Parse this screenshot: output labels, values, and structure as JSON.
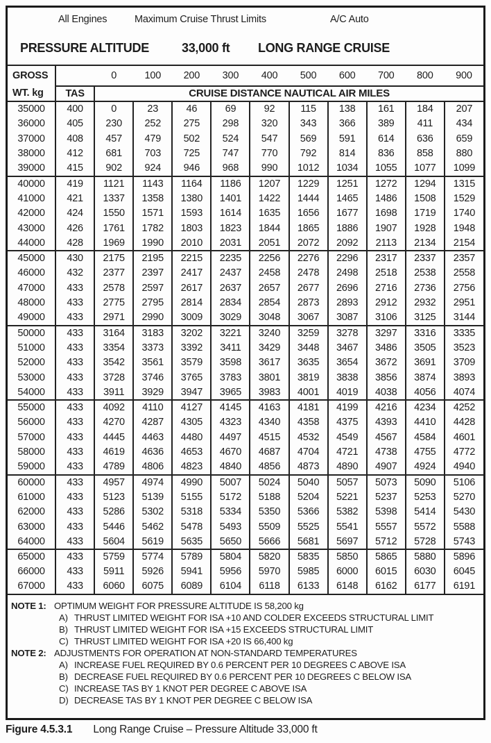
{
  "header": {
    "engines_label": "All Engines",
    "thrust_label": "Maximum Cruise Thrust Limits",
    "ac_label": "A/C Auto",
    "title_left": "PRESSURE ALTITUDE",
    "title_altitude": "33,000 ft",
    "title_right": "LONG RANGE CRUISE"
  },
  "table": {
    "gross_line1": "GROSS",
    "gross_line2": "WT. kg",
    "tas_label": "TAS",
    "distance_title": "CRUISE DISTANCE NAUTICAL AIR MILES",
    "distance_cols": [
      "0",
      "100",
      "200",
      "300",
      "400",
      "500",
      "600",
      "700",
      "800",
      "900"
    ],
    "groups": [
      {
        "rows": [
          {
            "wt": "35000",
            "tas": "400",
            "values": [
              "0",
              "23",
              "46",
              "69",
              "92",
              "115",
              "138",
              "161",
              "184",
              "207"
            ]
          },
          {
            "wt": "36000",
            "tas": "405",
            "values": [
              "230",
              "252",
              "275",
              "298",
              "320",
              "343",
              "366",
              "389",
              "411",
              "434"
            ]
          },
          {
            "wt": "37000",
            "tas": "408",
            "values": [
              "457",
              "479",
              "502",
              "524",
              "547",
              "569",
              "591",
              "614",
              "636",
              "659"
            ]
          },
          {
            "wt": "38000",
            "tas": "412",
            "values": [
              "681",
              "703",
              "725",
              "747",
              "770",
              "792",
              "814",
              "836",
              "858",
              "880"
            ]
          },
          {
            "wt": "39000",
            "tas": "415",
            "values": [
              "902",
              "924",
              "946",
              "968",
              "990",
              "1012",
              "1034",
              "1055",
              "1077",
              "1099"
            ]
          }
        ]
      },
      {
        "rows": [
          {
            "wt": "40000",
            "tas": "419",
            "values": [
              "1121",
              "1143",
              "1164",
              "1186",
              "1207",
              "1229",
              "1251",
              "1272",
              "1294",
              "1315"
            ]
          },
          {
            "wt": "41000",
            "tas": "421",
            "values": [
              "1337",
              "1358",
              "1380",
              "1401",
              "1422",
              "1444",
              "1465",
              "1486",
              "1508",
              "1529"
            ]
          },
          {
            "wt": "42000",
            "tas": "424",
            "values": [
              "1550",
              "1571",
              "1593",
              "1614",
              "1635",
              "1656",
              "1677",
              "1698",
              "1719",
              "1740"
            ]
          },
          {
            "wt": "43000",
            "tas": "426",
            "values": [
              "1761",
              "1782",
              "1803",
              "1823",
              "1844",
              "1865",
              "1886",
              "1907",
              "1928",
              "1948"
            ]
          },
          {
            "wt": "44000",
            "tas": "428",
            "values": [
              "1969",
              "1990",
              "2010",
              "2031",
              "2051",
              "2072",
              "2092",
              "2113",
              "2134",
              "2154"
            ]
          }
        ]
      },
      {
        "rows": [
          {
            "wt": "45000",
            "tas": "430",
            "values": [
              "2175",
              "2195",
              "2215",
              "2235",
              "2256",
              "2276",
              "2296",
              "2317",
              "2337",
              "2357"
            ]
          },
          {
            "wt": "46000",
            "tas": "432",
            "values": [
              "2377",
              "2397",
              "2417",
              "2437",
              "2458",
              "2478",
              "2498",
              "2518",
              "2538",
              "2558"
            ]
          },
          {
            "wt": "47000",
            "tas": "433",
            "values": [
              "2578",
              "2597",
              "2617",
              "2637",
              "2657",
              "2677",
              "2696",
              "2716",
              "2736",
              "2756"
            ]
          },
          {
            "wt": "48000",
            "tas": "433",
            "values": [
              "2775",
              "2795",
              "2814",
              "2834",
              "2854",
              "2873",
              "2893",
              "2912",
              "2932",
              "2951"
            ]
          },
          {
            "wt": "49000",
            "tas": "433",
            "values": [
              "2971",
              "2990",
              "3009",
              "3029",
              "3048",
              "3067",
              "3087",
              "3106",
              "3125",
              "3144"
            ]
          }
        ]
      },
      {
        "rows": [
          {
            "wt": "50000",
            "tas": "433",
            "values": [
              "3164",
              "3183",
              "3202",
              "3221",
              "3240",
              "3259",
              "3278",
              "3297",
              "3316",
              "3335"
            ]
          },
          {
            "wt": "51000",
            "tas": "433",
            "values": [
              "3354",
              "3373",
              "3392",
              "3411",
              "3429",
              "3448",
              "3467",
              "3486",
              "3505",
              "3523"
            ]
          },
          {
            "wt": "52000",
            "tas": "433",
            "values": [
              "3542",
              "3561",
              "3579",
              "3598",
              "3617",
              "3635",
              "3654",
              "3672",
              "3691",
              "3709"
            ]
          },
          {
            "wt": "53000",
            "tas": "433",
            "values": [
              "3728",
              "3746",
              "3765",
              "3783",
              "3801",
              "3819",
              "3838",
              "3856",
              "3874",
              "3893"
            ]
          },
          {
            "wt": "54000",
            "tas": "433",
            "values": [
              "3911",
              "3929",
              "3947",
              "3965",
              "3983",
              "4001",
              "4019",
              "4038",
              "4056",
              "4074"
            ]
          }
        ]
      },
      {
        "rows": [
          {
            "wt": "55000",
            "tas": "433",
            "values": [
              "4092",
              "4110",
              "4127",
              "4145",
              "4163",
              "4181",
              "4199",
              "4216",
              "4234",
              "4252"
            ]
          },
          {
            "wt": "56000",
            "tas": "433",
            "values": [
              "4270",
              "4287",
              "4305",
              "4323",
              "4340",
              "4358",
              "4375",
              "4393",
              "4410",
              "4428"
            ]
          },
          {
            "wt": "57000",
            "tas": "433",
            "values": [
              "4445",
              "4463",
              "4480",
              "4497",
              "4515",
              "4532",
              "4549",
              "4567",
              "4584",
              "4601"
            ]
          },
          {
            "wt": "58000",
            "tas": "433",
            "values": [
              "4619",
              "4636",
              "4653",
              "4670",
              "4687",
              "4704",
              "4721",
              "4738",
              "4755",
              "4772"
            ]
          },
          {
            "wt": "59000",
            "tas": "433",
            "values": [
              "4789",
              "4806",
              "4823",
              "4840",
              "4856",
              "4873",
              "4890",
              "4907",
              "4924",
              "4940"
            ]
          }
        ]
      },
      {
        "rows": [
          {
            "wt": "60000",
            "tas": "433",
            "values": [
              "4957",
              "4974",
              "4990",
              "5007",
              "5024",
              "5040",
              "5057",
              "5073",
              "5090",
              "5106"
            ]
          },
          {
            "wt": "61000",
            "tas": "433",
            "values": [
              "5123",
              "5139",
              "5155",
              "5172",
              "5188",
              "5204",
              "5221",
              "5237",
              "5253",
              "5270"
            ]
          },
          {
            "wt": "62000",
            "tas": "433",
            "values": [
              "5286",
              "5302",
              "5318",
              "5334",
              "5350",
              "5366",
              "5382",
              "5398",
              "5414",
              "5430"
            ]
          },
          {
            "wt": "63000",
            "tas": "433",
            "values": [
              "5446",
              "5462",
              "5478",
              "5493",
              "5509",
              "5525",
              "5541",
              "5557",
              "5572",
              "5588"
            ]
          },
          {
            "wt": "64000",
            "tas": "433",
            "values": [
              "5604",
              "5619",
              "5635",
              "5650",
              "5666",
              "5681",
              "5697",
              "5712",
              "5728",
              "5743"
            ]
          }
        ]
      },
      {
        "rows": [
          {
            "wt": "65000",
            "tas": "433",
            "values": [
              "5759",
              "5774",
              "5789",
              "5804",
              "5820",
              "5835",
              "5850",
              "5865",
              "5880",
              "5896"
            ]
          },
          {
            "wt": "66000",
            "tas": "433",
            "values": [
              "5911",
              "5926",
              "5941",
              "5956",
              "5970",
              "5985",
              "6000",
              "6015",
              "6030",
              "6045"
            ]
          },
          {
            "wt": "67000",
            "tas": "433",
            "values": [
              "6060",
              "6075",
              "6089",
              "6104",
              "6118",
              "6133",
              "6148",
              "6162",
              "6177",
              "6191"
            ]
          }
        ]
      }
    ]
  },
  "notes": [
    {
      "type": "main",
      "label": "NOTE 1:",
      "text": "OPTIMUM WEIGHT FOR PRESSURE ALTITUDE IS 58,200 kg"
    },
    {
      "type": "sub",
      "label": "A)",
      "text": "THRUST LIMITED WEIGHT FOR ISA +10 AND COLDER EXCEEDS STRUCTURAL LIMIT"
    },
    {
      "type": "sub",
      "label": "B)",
      "text": "THRUST LIMITED WEIGHT FOR ISA +15 EXCEEDS STRUCTURAL LIMIT"
    },
    {
      "type": "sub",
      "label": "C)",
      "text": "THRUST LIMITED WEIGHT FOR ISA +20 IS 66,400 kg"
    },
    {
      "type": "main",
      "label": "NOTE 2:",
      "text": "ADJUSTMENTS FOR OPERATION AT NON-STANDARD TEMPERATURES"
    },
    {
      "type": "sub",
      "label": "A)",
      "text": "INCREASE FUEL REQUIRED BY 0.6 PERCENT PER 10 DEGREES C ABOVE ISA"
    },
    {
      "type": "sub",
      "label": "B)",
      "text": "DECREASE FUEL REQUIRED BY 0.6 PERCENT PER 10 DEGREES C BELOW ISA"
    },
    {
      "type": "sub",
      "label": "C)",
      "text": "INCREASE TAS BY 1 KNOT PER DEGREE C ABOVE ISA"
    },
    {
      "type": "sub",
      "label": "D)",
      "text": "DECREASE TAS BY 1 KNOT PER DEGREE C BELOW ISA"
    }
  ],
  "caption": {
    "number": "Figure 4.5.3.1",
    "text": "Long Range Cruise – Pressure Altitude 33,000 ft"
  }
}
